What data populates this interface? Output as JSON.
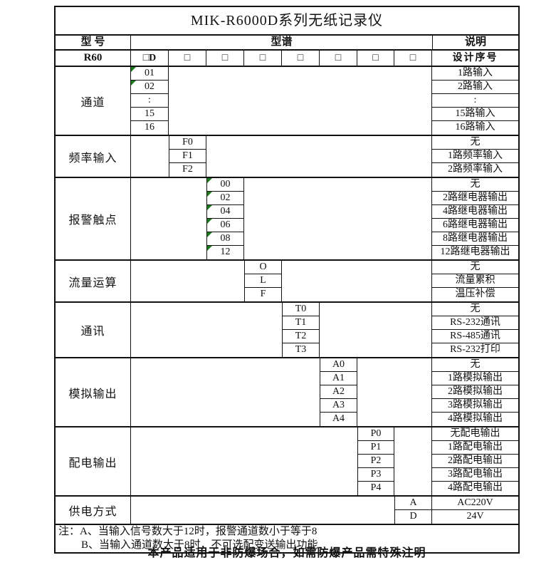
{
  "title": "MIK-R6000D系列无纸记录仪",
  "header": {
    "model_label": "型 号",
    "spectrum_label": "型谱",
    "description_label": "说明",
    "model_value": "R60",
    "serial_label": "设计序号",
    "spec_boxes": [
      "□D",
      "□",
      "□",
      "□",
      "□",
      "□",
      "□",
      "□"
    ]
  },
  "sections": [
    {
      "label": "通道",
      "col": 1,
      "rows": [
        {
          "code": "01",
          "desc": "1路输入",
          "marker": true
        },
        {
          "code": "02",
          "desc": "2路输入",
          "marker": true
        },
        {
          "code": ":",
          "desc": ":"
        },
        {
          "code": "15",
          "desc": "15路输入"
        },
        {
          "code": "16",
          "desc": "16路输入"
        }
      ]
    },
    {
      "label": "频率输入",
      "col": 2,
      "rows": [
        {
          "code": "F0",
          "desc": "无"
        },
        {
          "code": "F1",
          "desc": "1路频率输入"
        },
        {
          "code": "F2",
          "desc": "2路频率输入"
        }
      ]
    },
    {
      "label": "报警触点",
      "col": 3,
      "rows": [
        {
          "code": "00",
          "desc": "无",
          "marker": true
        },
        {
          "code": "02",
          "desc": "2路继电器输出",
          "marker": true
        },
        {
          "code": "04",
          "desc": "4路继电器输出",
          "marker": true
        },
        {
          "code": "06",
          "desc": "6路继电器输出",
          "marker": true
        },
        {
          "code": "08",
          "desc": "8路继电器输出",
          "marker": true
        },
        {
          "code": "12",
          "desc": "12路继电器输出",
          "marker": true
        }
      ]
    },
    {
      "label": "流量运算",
      "col": 4,
      "rows": [
        {
          "code": "O",
          "desc": "无"
        },
        {
          "code": "L",
          "desc": "流量累积"
        },
        {
          "code": "F",
          "desc": "温压补偿"
        }
      ]
    },
    {
      "label": "通讯",
      "col": 5,
      "rows": [
        {
          "code": "T0",
          "desc": "无"
        },
        {
          "code": "T1",
          "desc": "RS-232通讯"
        },
        {
          "code": "T2",
          "desc": "RS-485通讯"
        },
        {
          "code": "T3",
          "desc": "RS-232打印"
        }
      ]
    },
    {
      "label": "模拟输出",
      "col": 6,
      "rows": [
        {
          "code": "A0",
          "desc": "无"
        },
        {
          "code": "A1",
          "desc": "1路模拟输出"
        },
        {
          "code": "A2",
          "desc": "2路模拟输出"
        },
        {
          "code": "A3",
          "desc": "3路模拟输出"
        },
        {
          "code": "A4",
          "desc": "4路模拟输出"
        }
      ]
    },
    {
      "label": "配电输出",
      "col": 7,
      "rows": [
        {
          "code": "P0",
          "desc": "无配电输出"
        },
        {
          "code": "P1",
          "desc": "1路配电输出"
        },
        {
          "code": "P2",
          "desc": "2路配电输出"
        },
        {
          "code": "P3",
          "desc": "3路配电输出"
        },
        {
          "code": "P4",
          "desc": "4路配电输出"
        }
      ]
    },
    {
      "label": "供电方式",
      "col": 8,
      "rows": [
        {
          "code": "A",
          "desc": "AC220V"
        },
        {
          "code": "D",
          "desc": "24V"
        }
      ]
    }
  ],
  "notes": {
    "line_a": "注：A、当输入信号数大于12时，报警通道数小于等于8",
    "line_b": "B、当输入通道数大于8时，不可选配变送输出功能"
  },
  "footer": "本产品适用于非防爆场合，如需防爆产品需特殊注明",
  "colors": {
    "border": "#111111",
    "marker_green": "#1f7a1f",
    "background": "#ffffff"
  }
}
